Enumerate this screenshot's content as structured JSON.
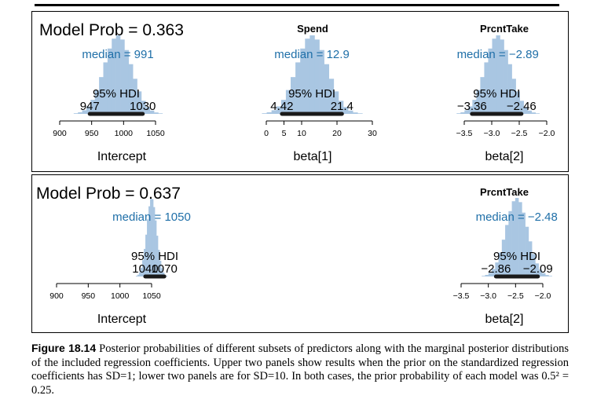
{
  "colors": {
    "hist": "#a9c6e2",
    "median": "#1f6fa8",
    "bar": "#1a1a1a"
  },
  "chart_data": [
    {
      "type": "bar",
      "panel": "top",
      "model_prob_label": "Model Prob = 0.363",
      "title": "",
      "xlabel": "Intercept",
      "median_label": "median = 991",
      "hdi_label": "95% HDI",
      "hdi_low_label": "947",
      "hdi_high_label": "1030",
      "median": 991,
      "hdi": [
        947,
        1030
      ],
      "xlim": [
        900,
        1050
      ],
      "ticks": [
        900,
        950,
        1000,
        1050
      ],
      "tick_labels": [
        "900",
        "950",
        "1000",
        "1050"
      ]
    },
    {
      "type": "bar",
      "panel": "top",
      "title": "Spend",
      "xlabel": "beta[1]",
      "median_label": "median = 12.9",
      "hdi_label": "95% HDI",
      "hdi_low_label": "4.42",
      "hdi_high_label": "21.4",
      "median": 12.9,
      "hdi": [
        4.42,
        21.4
      ],
      "xlim": [
        0,
        30
      ],
      "ticks": [
        0,
        5,
        10,
        20,
        30
      ],
      "tick_labels": [
        "0",
        "5",
        "10",
        "20",
        "30"
      ]
    },
    {
      "type": "bar",
      "panel": "top",
      "title": "PrcntTake",
      "xlabel": "beta[2]",
      "median_label": "median = −2.89",
      "hdi_label": "95% HDI",
      "hdi_low_label": "−3.36",
      "hdi_high_label": "−2.46",
      "median": -2.89,
      "hdi": [
        -3.36,
        -2.46
      ],
      "xlim": [
        -3.5,
        -2.0
      ],
      "ticks": [
        -3.5,
        -3.0,
        -2.5,
        -2.0
      ],
      "tick_labels": [
        "−3.5",
        "−3.0",
        "−2.5",
        "−2.0"
      ]
    },
    {
      "type": "bar",
      "panel": "bottom",
      "model_prob_label": "Model Prob = 0.637",
      "title": "",
      "xlabel": "Intercept",
      "median_label": "median = 1050",
      "hdi_label": "95% HDI",
      "hdi_low_label": "1040",
      "hdi_high_label": "1070",
      "median": 1050,
      "hdi": [
        1040,
        1070
      ],
      "xlim": [
        900,
        1050
      ],
      "ticks": [
        900,
        950,
        1000,
        1050
      ],
      "tick_labels": [
        "900",
        "950",
        "1000",
        "1050"
      ]
    },
    {
      "type": "bar",
      "panel": "bottom",
      "title": "PrcntTake",
      "xlabel": "beta[2]",
      "median_label": "median = −2.48",
      "hdi_label": "95% HDI",
      "hdi_low_label": "−2.86",
      "hdi_high_label": "−2.09",
      "median": -2.48,
      "hdi": [
        -2.86,
        -2.09
      ],
      "xlim": [
        -3.5,
        -2.0
      ],
      "ticks": [
        -3.5,
        -3.0,
        -2.5,
        -2.0
      ],
      "tick_labels": [
        "−3.5",
        "−3.0",
        "−2.5",
        "−2.0"
      ]
    }
  ],
  "caption": {
    "label": "Figure 18.14",
    "text": "Posterior probabilities of different subsets of predictors along with the marginal posterior distributions of the included regression coefficients. Upper two panels show results when the prior on the standardized regression coefficients has SD=1; lower two panels are for SD=10. In both cases, the prior probability of each model was 0.5² = 0.25."
  }
}
